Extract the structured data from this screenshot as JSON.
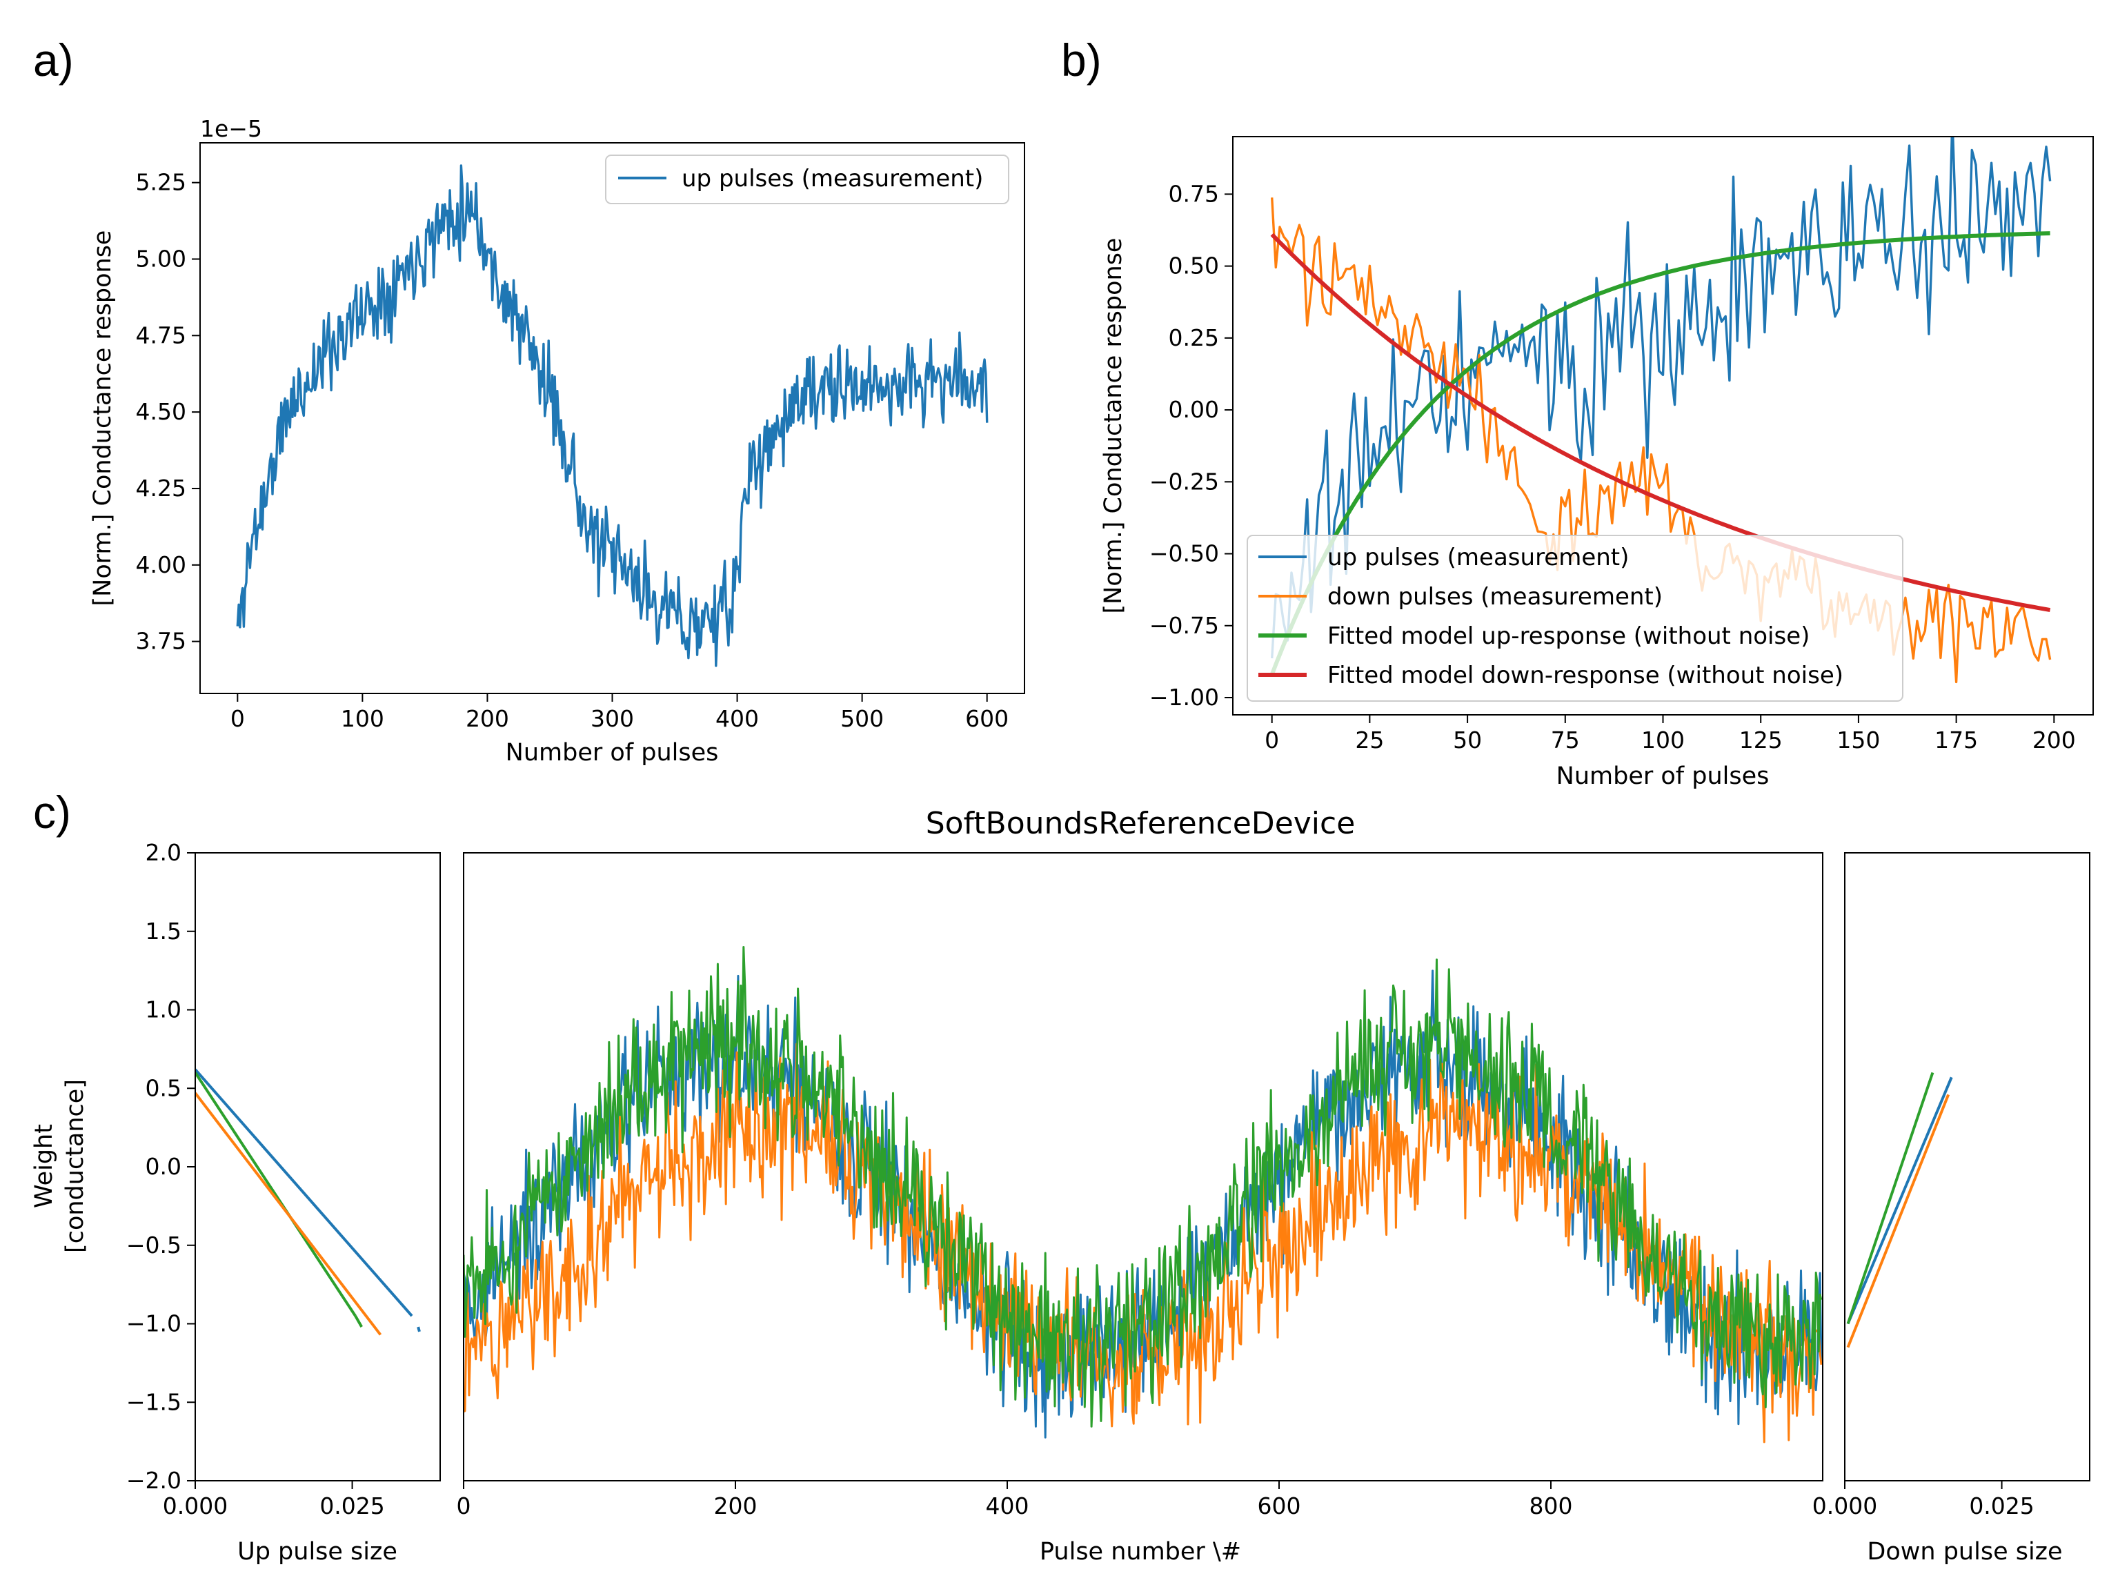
{
  "colors": {
    "blue": "#1f77b4",
    "orange": "#ff7f0e",
    "green": "#2ca02c",
    "red": "#d62728"
  },
  "panel_labels": [
    "a)",
    "b)",
    "c)"
  ],
  "chart_data": [
    {
      "id": "a",
      "type": "line",
      "xlabel": "Number of pulses",
      "ylabel": "[Norm.] Conductance response",
      "offset_text": "1e−5",
      "xlim": [
        -30,
        630
      ],
      "ylim": [
        3.58,
        5.38
      ],
      "xticks": [
        0,
        100,
        200,
        300,
        400,
        500,
        600
      ],
      "xtick_labels": [
        "0",
        "100",
        "200",
        "300",
        "400",
        "500",
        "600"
      ],
      "yticks": [
        3.75,
        4.0,
        4.25,
        4.5,
        4.75,
        5.0,
        5.25
      ],
      "ytick_labels": [
        "3.75",
        "4.00",
        "4.25",
        "4.50",
        "4.75",
        "5.00",
        "5.25"
      ],
      "series": [
        {
          "name": "up pulses (measurement)",
          "color": "#1f77b4",
          "x_start": 0,
          "x_end": 600,
          "n": 601,
          "trend_x": [
            0,
            10,
            40,
            80,
            120,
            170,
            190,
            200,
            230,
            260,
            280,
            300,
            330,
            360,
            395,
            410,
            450,
            500,
            550,
            600
          ],
          "trend_y": [
            3.78,
            4.05,
            4.5,
            4.75,
            4.9,
            5.15,
            5.18,
            5.0,
            4.75,
            4.45,
            4.1,
            4.02,
            3.9,
            3.8,
            3.85,
            4.3,
            4.55,
            4.58,
            4.6,
            4.6
          ],
          "noise": 0.11,
          "seed": 11
        }
      ],
      "legend": {
        "loc": "upper right",
        "entries": [
          "up pulses (measurement)"
        ]
      }
    },
    {
      "id": "b",
      "type": "line",
      "xlabel": "Number of pulses",
      "ylabel": "[Norm.] Conductance response",
      "xlim": [
        -10,
        210
      ],
      "ylim": [
        -1.06,
        0.95
      ],
      "xticks": [
        0,
        25,
        50,
        75,
        100,
        125,
        150,
        175,
        200
      ],
      "xtick_labels": [
        "0",
        "25",
        "50",
        "75",
        "100",
        "125",
        "150",
        "175",
        "200"
      ],
      "yticks": [
        -1.0,
        -0.75,
        -0.5,
        -0.25,
        0.0,
        0.25,
        0.5,
        0.75
      ],
      "ytick_labels": [
        "−1.00",
        "−0.75",
        "−0.50",
        "−0.25",
        "0.00",
        "0.25",
        "0.50",
        "0.75"
      ],
      "series": [
        {
          "name": "up pulses (measurement)",
          "color": "#1f77b4",
          "width": 3.4,
          "x_start": 0,
          "x_end": 199,
          "n": 200,
          "trend_x": [
            0,
            10,
            20,
            40,
            60,
            80,
            100,
            120,
            140,
            160,
            180,
            199
          ],
          "trend_y": [
            -0.75,
            -0.5,
            -0.15,
            0.05,
            0.12,
            0.2,
            0.3,
            0.45,
            0.55,
            0.62,
            0.68,
            0.7
          ],
          "noise": 0.28,
          "seed": 21
        },
        {
          "name": "down pulses (measurement)",
          "color": "#ff7f0e",
          "width": 3.4,
          "x_start": 0,
          "x_end": 199,
          "n": 200,
          "trend_x": [
            0,
            10,
            30,
            50,
            60,
            70,
            90,
            100,
            110,
            130,
            150,
            170,
            199
          ],
          "trend_y": [
            0.62,
            0.45,
            0.35,
            0.1,
            -0.1,
            -0.45,
            -0.25,
            -0.2,
            -0.55,
            -0.55,
            -0.7,
            -0.75,
            -0.8
          ],
          "noise": 0.13,
          "seed": 31
        },
        {
          "name": "Fitted model up-response (without noise)",
          "color": "#2ca02c",
          "width": 6,
          "func": "up",
          "params": {
            "a": 0.63,
            "b": -1.55,
            "k": 0.023
          }
        },
        {
          "name": "Fitted model down-response (without noise)",
          "color": "#d62728",
          "width": 6,
          "func": "down",
          "params": {
            "a": -0.97,
            "b": 1.58,
            "k": 0.0088
          }
        }
      ],
      "legend": {
        "loc": "lower left",
        "entries": [
          "up pulses (measurement)",
          "down pulses (measurement)",
          "Fitted model up-response (without noise)",
          "Fitted model down-response (without noise)"
        ]
      }
    },
    {
      "id": "c",
      "type": "line",
      "title": "SoftBoundsReferenceDevice",
      "ylabel": "Weight",
      "ylabel2": "[conductance]",
      "ylim": [
        -2.0,
        2.0
      ],
      "yticks": [
        -2.0,
        -1.5,
        -1.0,
        -0.5,
        0.0,
        0.5,
        1.0,
        1.5,
        2.0
      ],
      "ytick_labels": [
        "−2.0",
        "−1.5",
        "−1.0",
        "−0.5",
        "0.0",
        "0.5",
        "1.0",
        "1.5",
        "2.0"
      ],
      "left": {
        "xlabel": "Up pulse size",
        "xlim": [
          0.0,
          0.039
        ],
        "xticks": [
          0.0,
          0.025
        ],
        "xtick_labels": [
          "0.000",
          "0.025"
        ],
        "lines": [
          {
            "color": "#1f77b4",
            "x0": 0.0,
            "y0": 0.62,
            "x1": 0.0345,
            "y1": -0.95,
            "extra": [
              0.0355,
              -1.02,
              0.0357,
              -1.05
            ]
          },
          {
            "color": "#2ca02c",
            "x0": 0.0,
            "y0": 0.6,
            "x1": 0.0255,
            "y1": -0.95,
            "extra": [
              0.0255,
              -0.95,
              0.0265,
              -1.02
            ]
          },
          {
            "color": "#ff7f0e",
            "x0": 0.0,
            "y0": 0.47,
            "x1": 0.0295,
            "y1": -1.07
          }
        ]
      },
      "main": {
        "xlabel": "Pulse number \\#",
        "xlim": [
          0,
          1000
        ],
        "xticks": [
          0,
          200,
          400,
          600,
          800
        ],
        "xtick_labels": [
          "0",
          "200",
          "400",
          "600",
          "800"
        ],
        "series": [
          {
            "color": "#1f77b4",
            "amp": 0.95,
            "offset": -0.27,
            "phase": 0,
            "noise": 0.38,
            "seed": 41
          },
          {
            "color": "#ff7f0e",
            "amp": 0.75,
            "offset": -0.5,
            "phase": 30,
            "noise": 0.38,
            "seed": 51
          },
          {
            "color": "#2ca02c",
            "amp": 0.95,
            "offset": -0.18,
            "phase": 5,
            "noise": 0.38,
            "seed": 61
          }
        ]
      },
      "right": {
        "xlabel": "Down pulse size",
        "xlim": [
          0.0,
          0.039
        ],
        "xticks": [
          0.0,
          0.025
        ],
        "xtick_labels": [
          "0.000",
          "0.025"
        ],
        "lines": [
          {
            "color": "#ff7f0e",
            "x0": 0.0005,
            "y0": -1.15,
            "x1": 0.0165,
            "y1": 0.46
          },
          {
            "color": "#1f77b4",
            "x0": 0.0005,
            "y0": -1.0,
            "x1": 0.017,
            "y1": 0.57
          },
          {
            "color": "#2ca02c",
            "x0": 0.0005,
            "y0": -1.0,
            "x1": 0.014,
            "y1": 0.6
          }
        ]
      }
    }
  ]
}
